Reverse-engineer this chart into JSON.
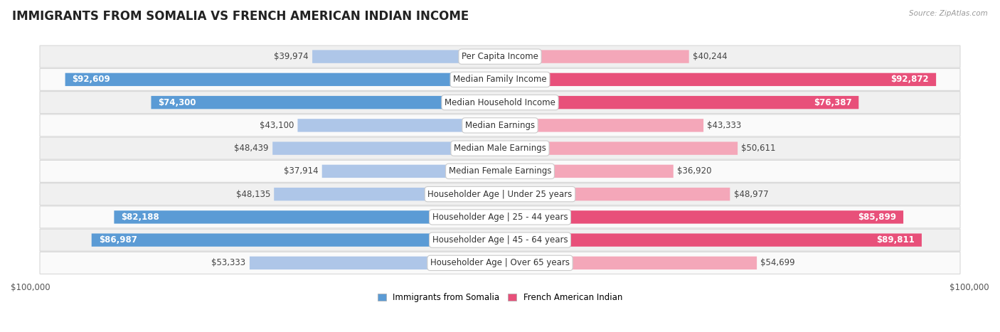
{
  "title": "IMMIGRANTS FROM SOMALIA VS FRENCH AMERICAN INDIAN INCOME",
  "source": "Source: ZipAtlas.com",
  "categories": [
    "Per Capita Income",
    "Median Family Income",
    "Median Household Income",
    "Median Earnings",
    "Median Male Earnings",
    "Median Female Earnings",
    "Householder Age | Under 25 years",
    "Householder Age | 25 - 44 years",
    "Householder Age | 45 - 64 years",
    "Householder Age | Over 65 years"
  ],
  "somalia_values": [
    39974,
    92609,
    74300,
    43100,
    48439,
    37914,
    48135,
    82188,
    86987,
    53333
  ],
  "french_values": [
    40244,
    92872,
    76387,
    43333,
    50611,
    36920,
    48977,
    85899,
    89811,
    54699
  ],
  "somalia_labels": [
    "$39,974",
    "$92,609",
    "$74,300",
    "$43,100",
    "$48,439",
    "$37,914",
    "$48,135",
    "$82,188",
    "$86,987",
    "$53,333"
  ],
  "french_labels": [
    "$40,244",
    "$92,872",
    "$76,387",
    "$43,333",
    "$50,611",
    "$36,920",
    "$48,977",
    "$85,899",
    "$89,811",
    "$54,699"
  ],
  "somalia_color_light": "#aec6e8",
  "somalia_color_dark": "#5b9bd5",
  "french_color_light": "#f4a7b9",
  "french_color_dark": "#e8507a",
  "max_value": 100000,
  "bar_height": 0.55,
  "row_bg_even": "#f0f0f0",
  "row_bg_odd": "#fafafa",
  "row_border": "#d8d8d8",
  "label_fontsize": 8.5,
  "title_fontsize": 12,
  "category_fontsize": 8.5,
  "somalia_threshold": 60000,
  "french_threshold": 60000,
  "legend_somalia": "Immigrants from Somalia",
  "legend_french": "French American Indian"
}
